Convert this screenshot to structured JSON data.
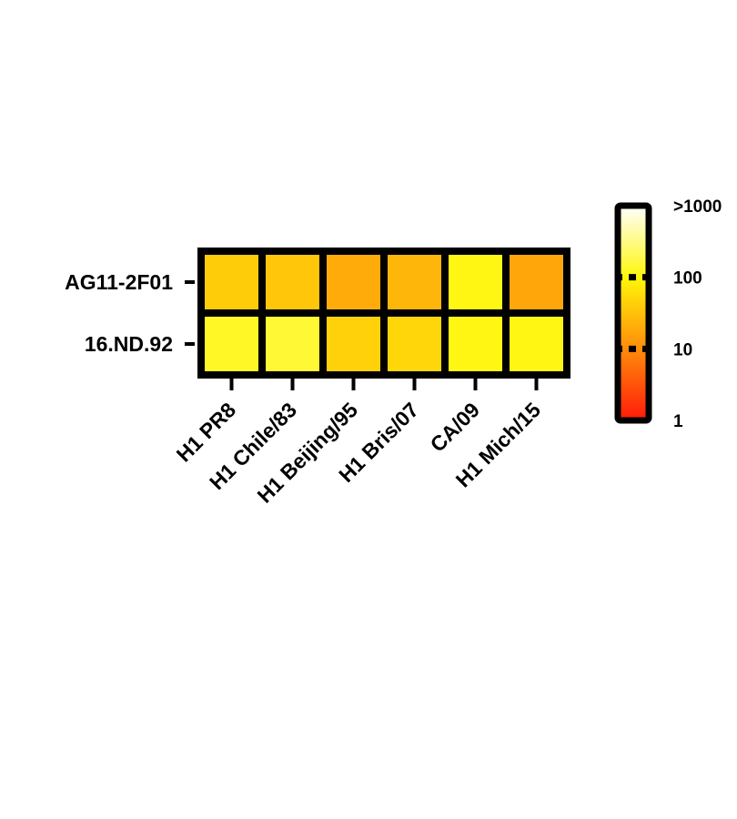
{
  "chart_data": {
    "type": "heatmap",
    "title": "",
    "xlabel": "",
    "ylabel": "",
    "rows": [
      "AG11-2F01",
      "16.ND.92"
    ],
    "columns": [
      "H1 PR8",
      "H1 Chile/83",
      "H1 Beijing/95",
      "H1 Bris/07",
      "CA/09",
      "H1 Mich/15"
    ],
    "values": [
      [
        40,
        35,
        20,
        25,
        110,
        18
      ],
      [
        130,
        150,
        45,
        50,
        110,
        110
      ]
    ],
    "colorbar": {
      "scale": "log",
      "range": [
        1,
        1000
      ],
      "ticks": [
        1,
        10,
        100,
        1000
      ],
      "tick_labels": [
        "1",
        "10",
        "100",
        ">1000"
      ],
      "colors": [
        "#ff1a0a",
        "#ff8c0a",
        "#fff60a",
        "#ffffff"
      ]
    }
  }
}
